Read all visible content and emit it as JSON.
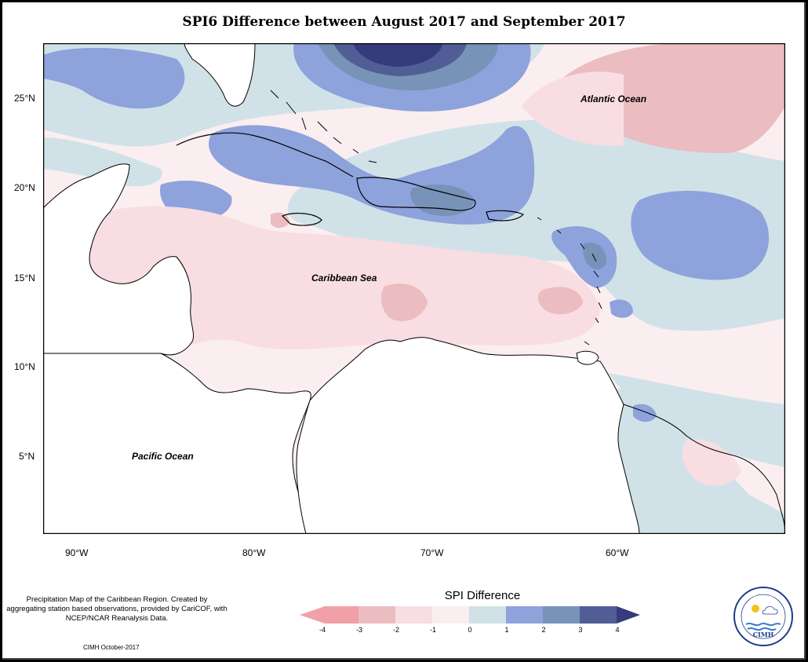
{
  "title": "SPI6 Difference between August 2017 and September 2017",
  "map": {
    "lat_ticks": [
      "25°N",
      "20°N",
      "15°N",
      "10°N",
      "5°N"
    ],
    "lon_ticks": [
      "90°W",
      "80°W",
      "70°W",
      "60°W"
    ],
    "labels": {
      "atlantic": "Atlantic Ocean",
      "caribbean": "Caribbean Sea",
      "pacific": "Pacific Ocean"
    },
    "land_color": "#ffffff",
    "coastline_color": "#000000"
  },
  "legend": {
    "title": "SPI Difference",
    "ticks": [
      "-4",
      "-3",
      "-2",
      "-1",
      "0",
      "1",
      "2",
      "3",
      "4"
    ],
    "colors": [
      "#f2a0a8",
      "#ebbcc0",
      "#f8dde2",
      "#fbeef0",
      "#d0e2e8",
      "#8ea2dc",
      "#7793b8",
      "#515e95",
      "#353b7b"
    ]
  },
  "credits": {
    "text": "Precipitation Map of the Caribbean Region. Created by aggregating station based observations, provided by CariCOF, with NCEP/NCAR Reanalysis Data.",
    "date": "CIMH October-2017"
  },
  "logo": {
    "text": "CIMH"
  }
}
